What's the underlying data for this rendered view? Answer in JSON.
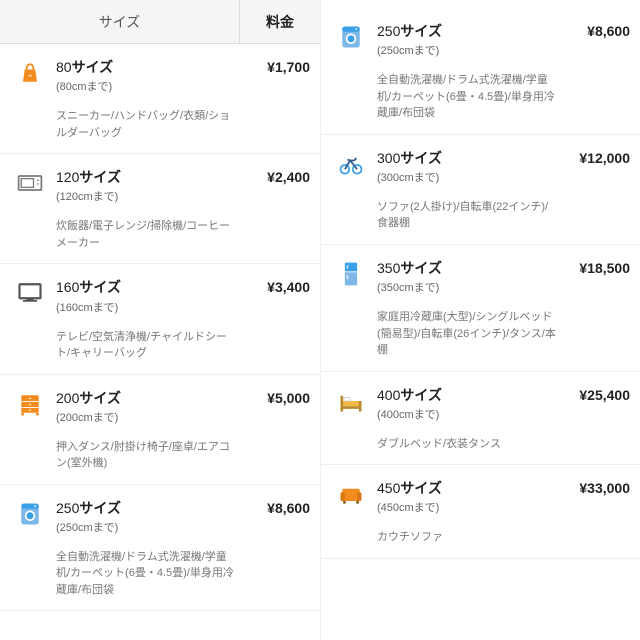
{
  "header": {
    "size_label": "サイズ",
    "price_label": "料金"
  },
  "colors": {
    "orange": "#f28c1e",
    "gray": "#7a7a7a",
    "blue": "#3aa0e8",
    "medblue": "#7db8e8",
    "darkblue": "#2c5a8f",
    "softyellow": "#f5b947",
    "darkgray": "#555"
  },
  "left": [
    {
      "icon": "handbag",
      "num": "80",
      "sub": "(80cmまで)",
      "examples": "スニーカー/ハンドバッグ/衣類/ショルダーバッグ",
      "price": "¥1,700"
    },
    {
      "icon": "microwave",
      "num": "120",
      "sub": "(120cmまで)",
      "examples": "炊飯器/電子レンジ/掃除機/コーヒーメーカー",
      "price": "¥2,400"
    },
    {
      "icon": "tv",
      "num": "160",
      "sub": "(160cmまで)",
      "examples": "テレビ/空気清浄機/チャイルドシート/キャリーバッグ",
      "price": "¥3,400"
    },
    {
      "icon": "drawers",
      "num": "200",
      "sub": "(200cmまで)",
      "examples": "押入ダンス/肘掛け椅子/座卓/エアコン(室外機)",
      "price": "¥5,000"
    },
    {
      "icon": "washer",
      "num": "250",
      "sub": "(250cmまで)",
      "examples": "全自動洗濯機/ドラム式洗濯機/学童机/カーペット(6畳・4.5畳)/単身用冷蔵庫/布団袋",
      "price": "¥8,600"
    }
  ],
  "right": [
    {
      "icon": "washer",
      "num": "250",
      "sub": "(250cmまで)",
      "examples": "全自動洗濯機/ドラム式洗濯機/学童机/カーペット(6畳・4.5畳)/単身用冷蔵庫/布団袋",
      "price": "¥8,600"
    },
    {
      "icon": "bicycle",
      "num": "300",
      "sub": "(300cmまで)",
      "examples": "ソファ(2人掛け)/自転車(22インチ)/食器棚",
      "price": "¥12,000"
    },
    {
      "icon": "fridge",
      "num": "350",
      "sub": "(350cmまで)",
      "examples": "家庭用冷蔵庫(大型)/シングルベッド(簡易型)/自転車(26インチ)/タンス/本棚",
      "price": "¥18,500"
    },
    {
      "icon": "bed",
      "num": "400",
      "sub": "(400cmまで)",
      "examples": "ダブルベッド/衣装タンス",
      "price": "¥25,400"
    },
    {
      "icon": "sofa",
      "num": "450",
      "sub": "(450cmまで)",
      "examples": "カウチソファ",
      "price": "¥33,000"
    }
  ],
  "size_suffix": "サイズ"
}
